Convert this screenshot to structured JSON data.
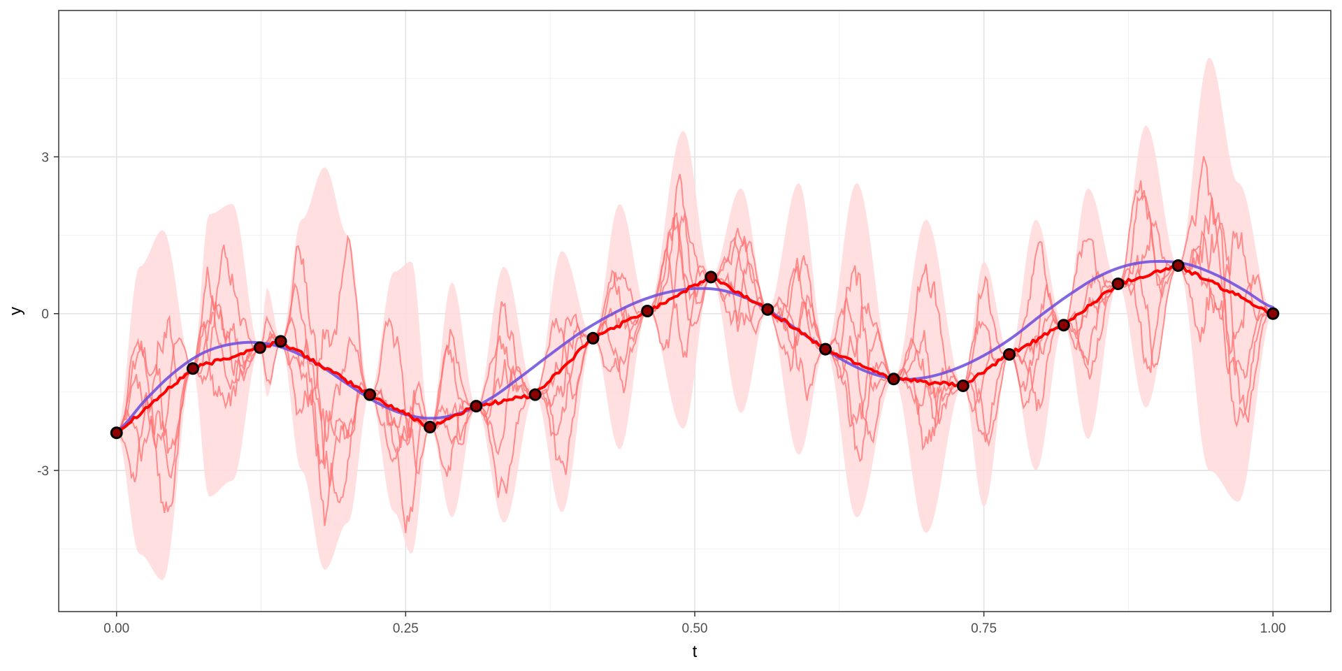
{
  "chart_data": {
    "type": "line",
    "xlabel": "t",
    "ylabel": "y",
    "xlim": [
      -0.05,
      1.05
    ],
    "ylim": [
      -5.7,
      5.8
    ],
    "x_ticks": [
      0,
      0.25,
      0.5,
      0.75,
      1
    ],
    "x_tick_labels": [
      "0.00",
      "0.25",
      "0.50",
      "0.75",
      "1.00"
    ],
    "y_ticks": [
      -3,
      0,
      3
    ],
    "y_tick_labels": [
      "-3",
      "0",
      "3"
    ],
    "grid": true,
    "legend": "none",
    "colors": {
      "true_function": "#6a4bdc",
      "mean": "#ff0000",
      "samples": "#ff6f6f",
      "band": "#ffd9da",
      "observations": "#000000"
    },
    "observations": [
      {
        "t": 0.0,
        "y": -2.28
      },
      {
        "t": 0.066,
        "y": -1.05
      },
      {
        "t": 0.124,
        "y": -0.65
      },
      {
        "t": 0.142,
        "y": -0.53
      },
      {
        "t": 0.219,
        "y": -1.55
      },
      {
        "t": 0.271,
        "y": -2.17
      },
      {
        "t": 0.311,
        "y": -1.77
      },
      {
        "t": 0.362,
        "y": -1.55
      },
      {
        "t": 0.412,
        "y": -0.47
      },
      {
        "t": 0.459,
        "y": 0.05
      },
      {
        "t": 0.514,
        "y": 0.7
      },
      {
        "t": 0.563,
        "y": 0.08
      },
      {
        "t": 0.613,
        "y": -0.68
      },
      {
        "t": 0.672,
        "y": -1.25
      },
      {
        "t": 0.732,
        "y": -1.38
      },
      {
        "t": 0.772,
        "y": -0.78
      },
      {
        "t": 0.819,
        "y": -0.22
      },
      {
        "t": 0.866,
        "y": 0.57
      },
      {
        "t": 0.918,
        "y": 0.92
      },
      {
        "t": 1.0,
        "y": 0.0
      }
    ],
    "true_function": {
      "t": [
        0,
        0.025,
        0.05,
        0.075,
        0.1,
        0.125,
        0.15,
        0.175,
        0.2,
        0.225,
        0.25,
        0.275,
        0.3,
        0.325,
        0.35,
        0.375,
        0.4,
        0.425,
        0.45,
        0.475,
        0.5,
        0.525,
        0.55,
        0.575,
        0.6,
        0.625,
        0.65,
        0.675,
        0.7,
        0.725,
        0.75,
        0.775,
        0.8,
        0.825,
        0.85,
        0.875,
        0.9,
        0.925,
        0.95,
        0.975,
        1.0
      ],
      "y": [
        -2.25,
        -1.65,
        -1.12,
        -0.75,
        -0.58,
        -0.56,
        -0.7,
        -0.98,
        -1.35,
        -1.7,
        -1.93,
        -2.0,
        -1.88,
        -1.6,
        -1.2,
        -0.78,
        -0.38,
        -0.05,
        0.22,
        0.4,
        0.48,
        0.44,
        0.24,
        -0.1,
        -0.48,
        -0.85,
        -1.12,
        -1.25,
        -1.22,
        -1.06,
        -0.8,
        -0.45,
        -0.02,
        0.38,
        0.72,
        0.93,
        1.0,
        0.95,
        0.75,
        0.45,
        0.12
      ]
    },
    "band": {
      "t": [
        0,
        0.02,
        0.04,
        0.066,
        0.08,
        0.1,
        0.124,
        0.13,
        0.142,
        0.16,
        0.18,
        0.2,
        0.219,
        0.24,
        0.255,
        0.271,
        0.29,
        0.311,
        0.335,
        0.362,
        0.385,
        0.412,
        0.435,
        0.459,
        0.49,
        0.514,
        0.54,
        0.563,
        0.59,
        0.613,
        0.64,
        0.672,
        0.7,
        0.732,
        0.75,
        0.772,
        0.795,
        0.819,
        0.84,
        0.866,
        0.89,
        0.918,
        0.945,
        0.97,
        1.0
      ],
      "upper": [
        -2.28,
        0.9,
        1.6,
        -1.05,
        1.9,
        2.1,
        -0.65,
        0.5,
        -0.53,
        1.8,
        2.8,
        1.5,
        -1.55,
        0.8,
        1.0,
        -2.17,
        0.6,
        -1.77,
        0.9,
        -1.55,
        1.2,
        -0.47,
        2.1,
        0.05,
        3.5,
        0.7,
        2.4,
        0.08,
        2.5,
        -0.68,
        2.5,
        -1.25,
        1.8,
        -1.38,
        1.0,
        -0.78,
        1.8,
        -0.22,
        2.4,
        0.57,
        3.6,
        0.92,
        4.9,
        2.5,
        0.0
      ],
      "lower": [
        -2.28,
        -4.6,
        -5.1,
        -1.05,
        -3.5,
        -3.2,
        -0.65,
        -1.6,
        -0.53,
        -3.0,
        -4.9,
        -4.0,
        -1.55,
        -3.8,
        -4.6,
        -2.17,
        -3.9,
        -1.77,
        -4.0,
        -1.55,
        -3.8,
        -0.47,
        -2.6,
        0.05,
        -2.2,
        0.7,
        -1.9,
        0.08,
        -2.7,
        -0.68,
        -3.9,
        -1.25,
        -4.2,
        -1.38,
        -3.7,
        -0.78,
        -3.0,
        -0.22,
        -2.4,
        0.57,
        -1.8,
        0.92,
        -3.0,
        -3.6,
        0.0
      ]
    },
    "series": [
      {
        "seed": 11
      },
      {
        "seed": 27
      },
      {
        "seed": 43
      },
      {
        "seed": 59
      },
      {
        "seed": 77
      }
    ]
  }
}
